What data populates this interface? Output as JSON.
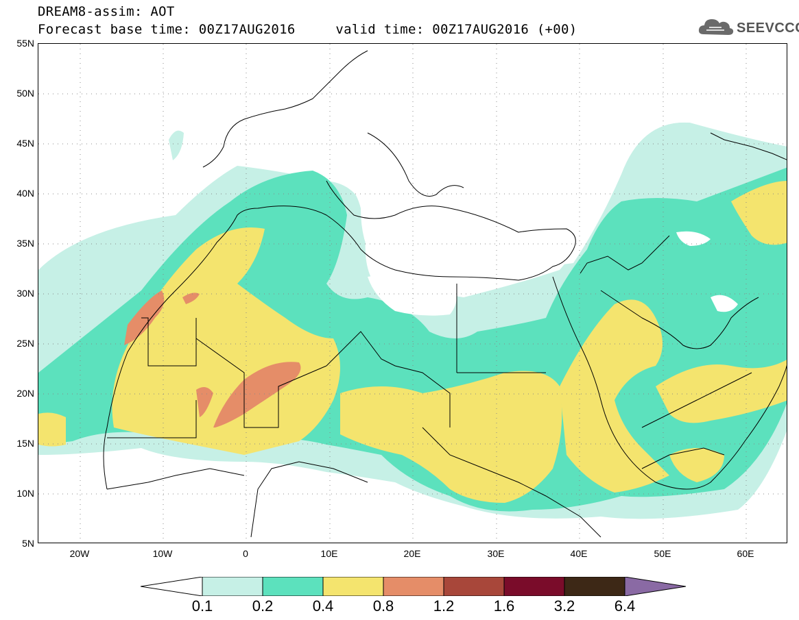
{
  "header": {
    "line1": "DREAM8-assim: AOT",
    "line2": "Forecast base time: 00Z17AUG2016     valid time: 00Z17AUG2016 (+00)"
  },
  "logo": {
    "text": "SEEVCCC",
    "icon": "cloud-logo-icon"
  },
  "map": {
    "lat_labels": [
      "55N",
      "50N",
      "45N",
      "40N",
      "35N",
      "30N",
      "25N",
      "20N",
      "15N",
      "10N",
      "5N"
    ],
    "lon_labels": [
      "20W",
      "10W",
      "0",
      "10E",
      "20E",
      "30E",
      "40E",
      "50E",
      "60E"
    ],
    "lat_range": [
      5,
      55
    ],
    "lon_range": [
      -25,
      65
    ],
    "grid": "dotted",
    "projection": "lat-lon"
  },
  "colorbar": {
    "labels": [
      "0.1",
      "0.2",
      "0.4",
      "0.8",
      "1.2",
      "1.6",
      "3.2",
      "6.4"
    ],
    "colors": [
      "#ffffff",
      "#c6f0e6",
      "#5ce1bd",
      "#f4e46e",
      "#e58d68",
      "#a8473a",
      "#7a0c2a",
      "#3d2816",
      "#8a6aa4"
    ]
  },
  "colors": {
    "c01": "#c6f0e6",
    "c02": "#5ce1bd",
    "c04": "#f4e46e",
    "c08": "#e58d68"
  }
}
